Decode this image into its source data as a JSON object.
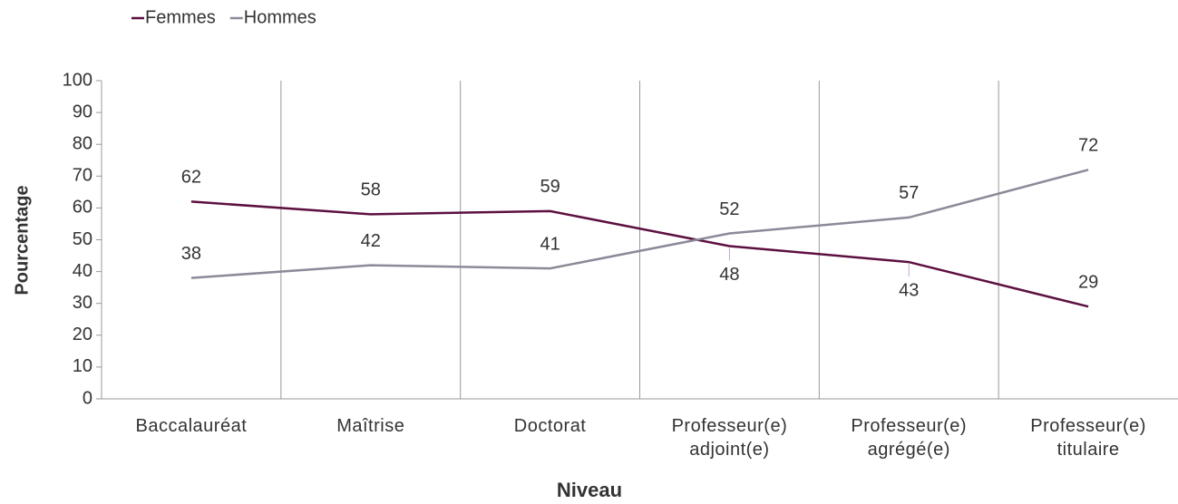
{
  "chart_data": {
    "type": "line",
    "categories": [
      "Baccalauréat",
      "Maîtrise",
      "Doctorat",
      "Professeur(e)\nadjoint(e)",
      "Professeur(e)\nagrégé(e)",
      "Professeur(e)\ntitulaire"
    ],
    "series": [
      {
        "name": "Femmes",
        "color": "#5c1040",
        "values": [
          62,
          58,
          59,
          48,
          43,
          29
        ]
      },
      {
        "name": "Hommes",
        "color": "#8c8a98",
        "values": [
          38,
          42,
          41,
          52,
          57,
          72
        ]
      }
    ],
    "xlabel": "Niveau",
    "ylabel": "Pourcentage",
    "ylim": [
      0,
      100
    ],
    "yticks": [
      0,
      10,
      20,
      30,
      40,
      50,
      60,
      70,
      80,
      90,
      100
    ],
    "legend": "top-left"
  }
}
